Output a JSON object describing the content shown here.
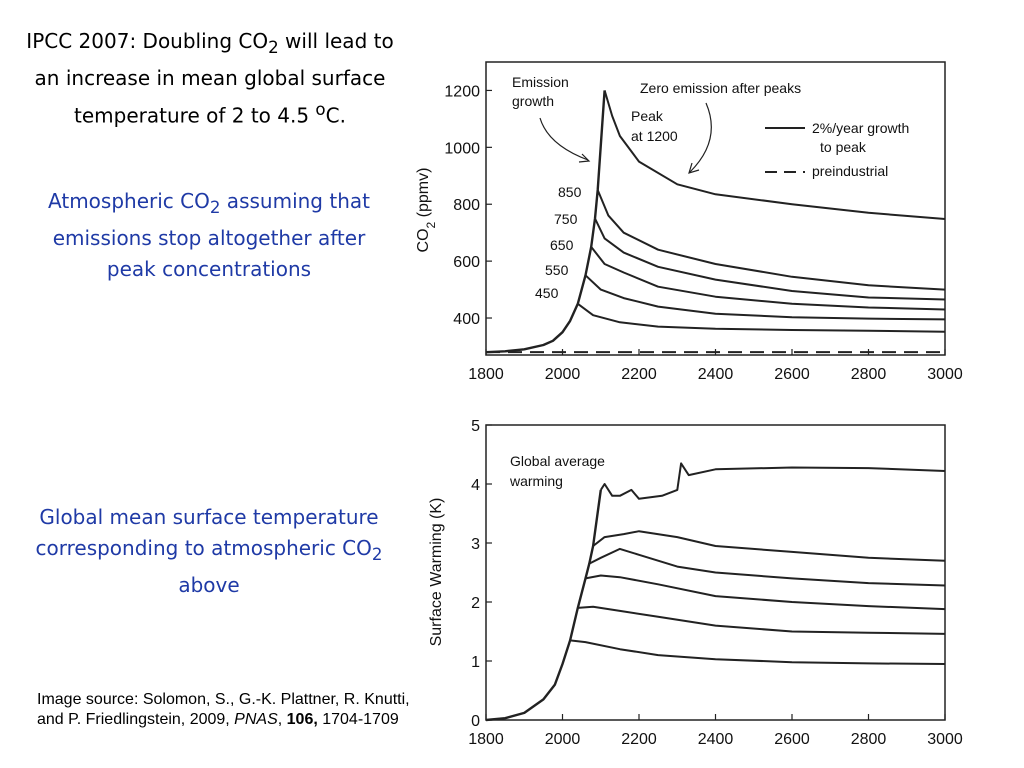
{
  "text": {
    "title": {
      "pre": "IPCC 2007: Doubling CO",
      "sub": "2",
      "post": " will lead to an increase in mean global surface temperature of 2 to 4.5 ",
      "sup": "o",
      "end": "C."
    },
    "desc1": {
      "pre": "Atmospheric CO",
      "sub": "2",
      "post": " assuming that emissions stop altogether after peak concentrations"
    },
    "desc2": {
      "pre": "Global mean surface temperature corresponding to atmospheric CO",
      "sub": "2",
      "post": " above"
    },
    "source": {
      "pre": "Image source:  Solomon, S., G.-K. Plattner, R. Knutti, and P. Friedlingstein, 2009, ",
      "journal": "PNAS",
      "sep": ", ",
      "volume": "106,",
      "pages": " 1704-1709"
    }
  },
  "colors": {
    "title": "#000000",
    "description": "#1f3aa6",
    "lines": "#222222"
  },
  "chart_data": [
    {
      "type": "line",
      "ylabel_main": "CO",
      "ylabel_sub": "2",
      "ylabel_unit": " (ppmv)",
      "xlim": [
        1800,
        3000
      ],
      "ylim": [
        270,
        1300
      ],
      "xticks": [
        1800,
        2000,
        2200,
        2400,
        2600,
        2800,
        3000
      ],
      "yticks": [
        400,
        600,
        800,
        1000,
        1200
      ],
      "legend": {
        "placement": "top-right",
        "entries": [
          {
            "style": "solid",
            "label1": "2%/year growth",
            "label2": "to peak"
          },
          {
            "style": "dashed",
            "label1": "preindustrial"
          }
        ]
      },
      "annotations": {
        "emission_growth": [
          "Emission",
          "growth"
        ],
        "zero_emission": "Zero emission after peaks",
        "peak_at": [
          "Peak",
          "at 1200"
        ],
        "peak_labels": [
          "850",
          "750",
          "650",
          "550",
          "450"
        ]
      },
      "preindustrial": 280,
      "rise": [
        [
          1800,
          280
        ],
        [
          1850,
          283
        ],
        [
          1900,
          290
        ],
        [
          1950,
          305
        ],
        [
          1975,
          320
        ],
        [
          2000,
          350
        ],
        [
          2020,
          390
        ],
        [
          2040,
          450
        ],
        [
          2060,
          550
        ],
        [
          2075,
          650
        ],
        [
          2085,
          750
        ],
        [
          2092,
          850
        ],
        [
          2110,
          1200
        ]
      ],
      "series": [
        {
          "peak": 1200,
          "points": [
            [
              2110,
              1200
            ],
            [
              2130,
              1110
            ],
            [
              2150,
              1040
            ],
            [
              2200,
              950
            ],
            [
              2300,
              870
            ],
            [
              2400,
              835
            ],
            [
              2600,
              800
            ],
            [
              2800,
              770
            ],
            [
              3000,
              748
            ]
          ]
        },
        {
          "peak": 850,
          "points": [
            [
              2092,
              850
            ],
            [
              2120,
              760
            ],
            [
              2160,
              700
            ],
            [
              2250,
              640
            ],
            [
              2400,
              590
            ],
            [
              2600,
              545
            ],
            [
              2800,
              515
            ],
            [
              3000,
              500
            ]
          ]
        },
        {
          "peak": 750,
          "points": [
            [
              2085,
              750
            ],
            [
              2110,
              680
            ],
            [
              2160,
              630
            ],
            [
              2250,
              580
            ],
            [
              2400,
              535
            ],
            [
              2600,
              495
            ],
            [
              2800,
              472
            ],
            [
              3000,
              465
            ]
          ]
        },
        {
          "peak": 650,
          "points": [
            [
              2075,
              650
            ],
            [
              2110,
              590
            ],
            [
              2160,
              560
            ],
            [
              2250,
              510
            ],
            [
              2400,
              475
            ],
            [
              2600,
              450
            ],
            [
              2800,
              437
            ],
            [
              3000,
              430
            ]
          ]
        },
        {
          "peak": 550,
          "points": [
            [
              2060,
              550
            ],
            [
              2100,
              500
            ],
            [
              2160,
              470
            ],
            [
              2250,
              440
            ],
            [
              2400,
              415
            ],
            [
              2600,
              403
            ],
            [
              2800,
              398
            ],
            [
              3000,
              395
            ]
          ]
        },
        {
          "peak": 450,
          "points": [
            [
              2040,
              450
            ],
            [
              2080,
              410
            ],
            [
              2150,
              385
            ],
            [
              2250,
              370
            ],
            [
              2400,
              362
            ],
            [
              2600,
              358
            ],
            [
              2800,
              355
            ],
            [
              3000,
              352
            ]
          ]
        }
      ]
    },
    {
      "type": "line",
      "ylabel": "Surface Warming (K)",
      "xlim": [
        1800,
        3000
      ],
      "ylim": [
        0,
        5
      ],
      "xticks": [
        1800,
        2000,
        2200,
        2400,
        2600,
        2800,
        3000
      ],
      "yticks": [
        0,
        1,
        2,
        3,
        4,
        5
      ],
      "annotation": [
        "Global average",
        "warming"
      ],
      "rise": [
        [
          1800,
          0
        ],
        [
          1850,
          0.03
        ],
        [
          1900,
          0.12
        ],
        [
          1950,
          0.35
        ],
        [
          1980,
          0.6
        ],
        [
          2000,
          0.95
        ],
        [
          2020,
          1.35
        ],
        [
          2040,
          1.9
        ],
        [
          2060,
          2.4
        ],
        [
          2070,
          2.65
        ],
        [
          2080,
          2.95
        ],
        [
          2100,
          3.9
        ]
      ],
      "series": [
        {
          "points": [
            [
              2100,
              3.9
            ],
            [
              2110,
              4.0
            ],
            [
              2130,
              3.8
            ],
            [
              2150,
              3.8
            ],
            [
              2180,
              3.9
            ],
            [
              2200,
              3.75
            ],
            [
              2260,
              3.8
            ],
            [
              2300,
              3.9
            ],
            [
              2310,
              4.35
            ],
            [
              2330,
              4.15
            ],
            [
              2400,
              4.25
            ],
            [
              2600,
              4.28
            ],
            [
              2800,
              4.27
            ],
            [
              3000,
              4.22
            ]
          ]
        },
        {
          "points": [
            [
              2080,
              2.95
            ],
            [
              2110,
              3.1
            ],
            [
              2160,
              3.15
            ],
            [
              2200,
              3.2
            ],
            [
              2300,
              3.1
            ],
            [
              2400,
              2.95
            ],
            [
              2600,
              2.85
            ],
            [
              2800,
              2.75
            ],
            [
              3000,
              2.7
            ]
          ]
        },
        {
          "points": [
            [
              2070,
              2.65
            ],
            [
              2100,
              2.75
            ],
            [
              2150,
              2.9
            ],
            [
              2200,
              2.8
            ],
            [
              2300,
              2.6
            ],
            [
              2400,
              2.5
            ],
            [
              2600,
              2.4
            ],
            [
              2800,
              2.32
            ],
            [
              3000,
              2.28
            ]
          ]
        },
        {
          "points": [
            [
              2060,
              2.4
            ],
            [
              2100,
              2.45
            ],
            [
              2150,
              2.42
            ],
            [
              2250,
              2.3
            ],
            [
              2400,
              2.1
            ],
            [
              2600,
              2.0
            ],
            [
              2800,
              1.93
            ],
            [
              3000,
              1.88
            ]
          ]
        },
        {
          "points": [
            [
              2040,
              1.9
            ],
            [
              2080,
              1.92
            ],
            [
              2150,
              1.85
            ],
            [
              2250,
              1.75
            ],
            [
              2400,
              1.6
            ],
            [
              2600,
              1.5
            ],
            [
              2800,
              1.48
            ],
            [
              3000,
              1.46
            ]
          ]
        },
        {
          "points": [
            [
              2020,
              1.35
            ],
            [
              2060,
              1.32
            ],
            [
              2150,
              1.2
            ],
            [
              2250,
              1.1
            ],
            [
              2400,
              1.03
            ],
            [
              2600,
              0.98
            ],
            [
              2800,
              0.96
            ],
            [
              3000,
              0.95
            ]
          ]
        }
      ]
    }
  ]
}
